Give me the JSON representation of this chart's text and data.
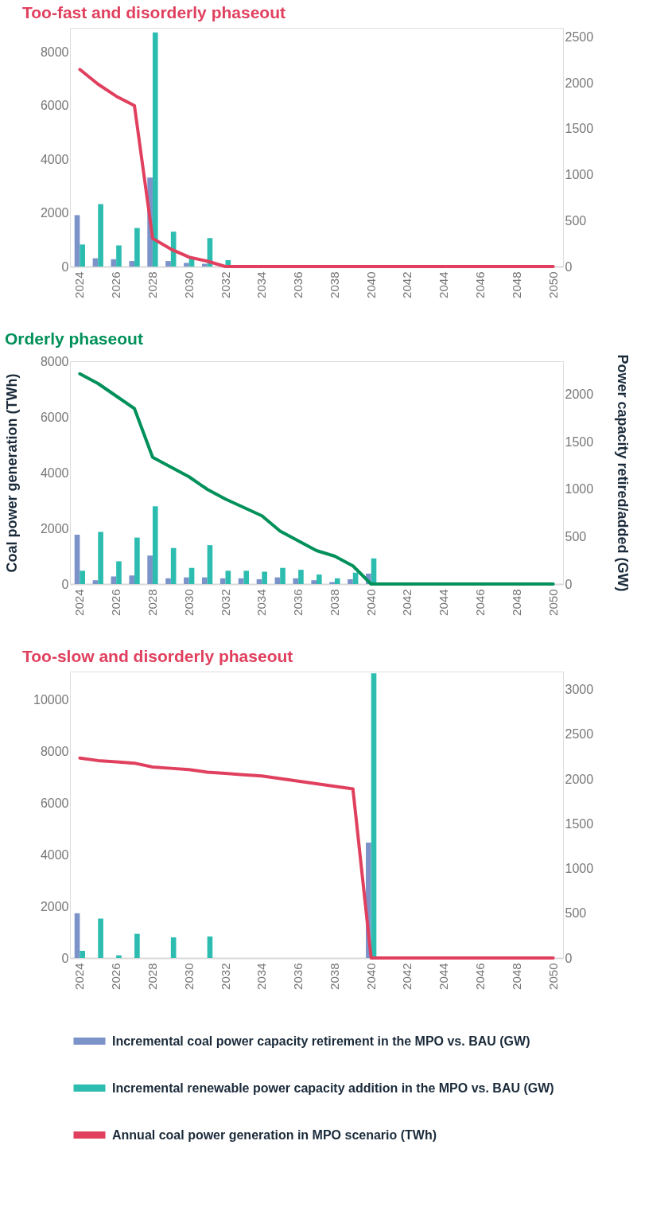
{
  "chart_data": [
    {
      "type": "bar",
      "title": "Too-fast and disorderly phaseout",
      "categories": [
        "2024",
        null,
        "2026",
        null,
        "2028",
        null,
        "2030",
        null,
        "2032",
        null,
        "2034",
        null,
        "2036",
        null,
        "2038",
        null,
        "2040",
        null,
        "2042",
        null,
        "2044",
        null,
        "2046",
        null,
        "2048",
        null,
        "2050"
      ],
      "series": [
        {
          "color": "#7b93c9",
          "axis": "y2",
          "values": [
            560,
            90,
            80,
            60,
            970,
            60,
            40,
            30,
            0,
            0,
            0,
            0,
            0,
            0,
            0,
            0,
            0,
            0,
            0,
            0,
            0,
            0,
            0,
            0,
            0,
            0,
            0
          ]
        },
        {
          "color": "#2dbdb0",
          "axis": "y2",
          "values": [
            240,
            680,
            230,
            420,
            2550,
            380,
            100,
            310,
            70,
            0,
            0,
            0,
            0,
            0,
            0,
            0,
            0,
            0,
            0,
            0,
            0,
            0,
            0,
            0,
            0,
            0,
            0
          ]
        },
        {
          "type": "line",
          "color": "#e0405e",
          "values": [
            7350,
            6800,
            6350,
            6000,
            1050,
            650,
            350,
            200,
            0,
            0,
            0,
            0,
            0,
            0,
            0,
            0,
            0,
            0,
            0,
            0,
            0,
            0,
            0,
            0,
            0,
            0,
            0
          ]
        }
      ],
      "ylim": [
        0,
        8900
      ],
      "yticks": [
        0,
        2000,
        4000,
        6000,
        8000
      ],
      "y2lim": [
        0,
        2600
      ],
      "y2ticks": [
        0,
        500,
        1000,
        1500,
        2000,
        2500
      ]
    },
    {
      "type": "bar",
      "title": "Orderly phaseout",
      "ylabel": "Coal power generation (TWh)",
      "y2label": "Power capacity retired/added (GW)",
      "categories": [
        "2024",
        null,
        "2026",
        null,
        "2028",
        null,
        "2030",
        null,
        "2032",
        null,
        "2034",
        null,
        "2036",
        null,
        "2038",
        null,
        "2040",
        null,
        "2042",
        null,
        "2044",
        null,
        "2046",
        null,
        "2048",
        null,
        "2050"
      ],
      "series": [
        {
          "color": "#7b93c9",
          "axis": "y2",
          "values": [
            520,
            40,
            80,
            90,
            300,
            60,
            70,
            70,
            60,
            60,
            50,
            70,
            60,
            40,
            20,
            50,
            110,
            0,
            0,
            0,
            0,
            0,
            0,
            0,
            0,
            0,
            0
          ]
        },
        {
          "color": "#2dbdb0",
          "axis": "y2",
          "values": [
            140,
            550,
            240,
            490,
            820,
            380,
            170,
            410,
            140,
            140,
            130,
            170,
            150,
            100,
            60,
            120,
            270,
            0,
            0,
            0,
            0,
            0,
            0,
            0,
            0,
            0,
            0
          ]
        },
        {
          "type": "line",
          "color": "#00905a",
          "values": [
            7550,
            7200,
            6750,
            6300,
            4550,
            4200,
            3850,
            3400,
            3050,
            2750,
            2450,
            1900,
            1550,
            1200,
            1000,
            650,
            0,
            0,
            0,
            0,
            0,
            0,
            0,
            0,
            0,
            0,
            0
          ]
        }
      ],
      "ylim": [
        0,
        8000
      ],
      "yticks": [
        0,
        2000,
        4000,
        6000,
        8000
      ],
      "y2lim": [
        0,
        2350
      ],
      "y2ticks": [
        0,
        500,
        1000,
        1500,
        2000
      ]
    },
    {
      "type": "bar",
      "title": "Too-slow and disorderly phaseout",
      "categories": [
        "2024",
        null,
        "2026",
        null,
        "2028",
        null,
        "2030",
        null,
        "2032",
        null,
        "2034",
        null,
        "2036",
        null,
        "2038",
        null,
        "2040",
        null,
        "2042",
        null,
        "2044",
        null,
        "2046",
        null,
        "2048",
        null,
        "2050"
      ],
      "series": [
        {
          "name": "Incremental coal power capacity retirement in the MPO vs. BAU (GW)",
          "color": "#7b93c9",
          "axis": "y2",
          "values": [
            500,
            0,
            0,
            0,
            0,
            0,
            0,
            0,
            0,
            0,
            0,
            0,
            0,
            0,
            0,
            0,
            1290,
            0,
            0,
            0,
            0,
            0,
            0,
            0,
            0,
            0,
            0
          ]
        },
        {
          "name": "Incremental renewable power capacity addition in the MPO vs. BAU (GW)",
          "color": "#2dbdb0",
          "axis": "y2",
          "values": [
            80,
            440,
            30,
            270,
            0,
            230,
            0,
            240,
            0,
            0,
            0,
            0,
            0,
            0,
            0,
            0,
            3180,
            0,
            0,
            0,
            0,
            0,
            0,
            0,
            0,
            0,
            0
          ]
        },
        {
          "name": "Annual coal power generation in MPO scenario (TWh)",
          "type": "line",
          "color": "#e0405e",
          "values": [
            7750,
            7650,
            7600,
            7550,
            7400,
            7350,
            7300,
            7200,
            7150,
            7100,
            7050,
            6950,
            6850,
            6750,
            6650,
            6550,
            0,
            0,
            0,
            0,
            0,
            0,
            0,
            0,
            0,
            0,
            0
          ]
        }
      ],
      "ylim": [
        0,
        11100
      ],
      "yticks": [
        0,
        2000,
        4000,
        6000,
        8000,
        10000
      ],
      "y2lim": [
        0,
        3200
      ],
      "y2ticks": [
        0,
        500,
        1000,
        1500,
        2000,
        2500,
        3000
      ],
      "legend": "bottom"
    }
  ]
}
